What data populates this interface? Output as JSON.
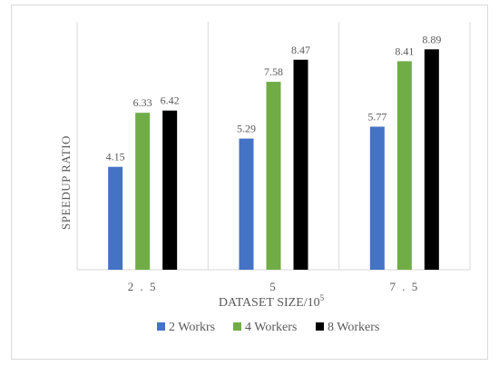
{
  "chart_data": {
    "type": "bar",
    "title": "",
    "xlabel": "DATASET SIZE/10",
    "xlabel_superscript": "5",
    "ylabel": "SPEEDUP RATIO",
    "ylim": [
      0,
      10
    ],
    "grid": false,
    "legend_position": "bottom",
    "categories": [
      "2.5",
      "5",
      "7.5"
    ],
    "category_tick_labels": [
      "2 . 5",
      "5",
      "7 . 5"
    ],
    "series": [
      {
        "name": "2 Workrs",
        "color": "#4472c4",
        "values": [
          4.15,
          5.29,
          5.77
        ]
      },
      {
        "name": "4 Workers",
        "color": "#70ad47",
        "values": [
          6.33,
          7.58,
          8.41
        ]
      },
      {
        "name": "8 Workers",
        "color": "#000000",
        "values": [
          6.42,
          8.47,
          8.89
        ]
      }
    ]
  }
}
